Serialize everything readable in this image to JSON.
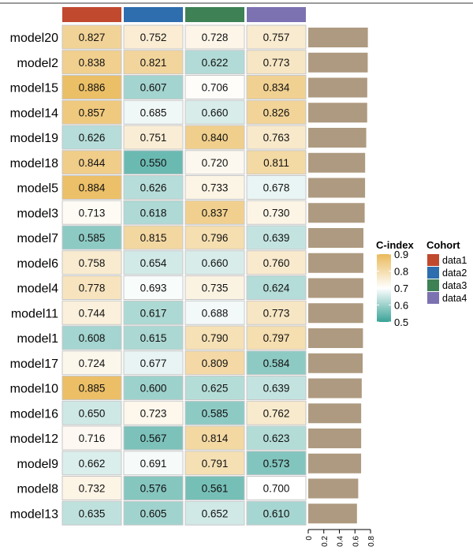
{
  "chart_data": {
    "type": "heatmap",
    "columns": [
      "data1",
      "data2",
      "data3",
      "data4"
    ],
    "rows": [
      "model20",
      "model2",
      "model15",
      "model14",
      "model19",
      "model18",
      "model5",
      "model3",
      "model7",
      "model6",
      "model4",
      "model11",
      "model1",
      "model17",
      "model10",
      "model16",
      "model12",
      "model9",
      "model8",
      "model13"
    ],
    "values": [
      [
        0.827,
        0.752,
        0.728,
        0.757
      ],
      [
        0.838,
        0.821,
        0.622,
        0.773
      ],
      [
        0.886,
        0.607,
        0.706,
        0.834
      ],
      [
        0.857,
        0.685,
        0.66,
        0.826
      ],
      [
        0.626,
        0.751,
        0.84,
        0.763
      ],
      [
        0.844,
        0.55,
        0.72,
        0.811
      ],
      [
        0.884,
        0.626,
        0.733,
        0.678
      ],
      [
        0.713,
        0.618,
        0.837,
        0.73
      ],
      [
        0.585,
        0.815,
        0.796,
        0.639
      ],
      [
        0.758,
        0.654,
        0.66,
        0.76
      ],
      [
        0.778,
        0.693,
        0.735,
        0.624
      ],
      [
        0.744,
        0.617,
        0.688,
        0.773
      ],
      [
        0.608,
        0.615,
        0.79,
        0.797
      ],
      [
        0.724,
        0.677,
        0.809,
        0.584
      ],
      [
        0.885,
        0.6,
        0.625,
        0.639
      ],
      [
        0.65,
        0.723,
        0.585,
        0.762
      ],
      [
        0.716,
        0.567,
        0.814,
        0.623
      ],
      [
        0.662,
        0.691,
        0.791,
        0.573
      ],
      [
        0.732,
        0.576,
        0.561,
        0.7
      ],
      [
        0.635,
        0.605,
        0.652,
        0.61
      ]
    ],
    "value_labels": [
      [
        "0.827",
        "0.752",
        "0.728",
        "0.757"
      ],
      [
        "0.838",
        "0.821",
        "0.622",
        "0.773"
      ],
      [
        "0.886",
        "0.607",
        "0.706",
        "0.834"
      ],
      [
        "0.857",
        "0.685",
        "0.660",
        "0.826"
      ],
      [
        "0.626",
        "0.751",
        "0.840",
        "0.763"
      ],
      [
        "0.844",
        "0.550",
        "0.720",
        "0.811"
      ],
      [
        "0.884",
        "0.626",
        "0.733",
        "0.678"
      ],
      [
        "0.713",
        "0.618",
        "0.837",
        "0.730"
      ],
      [
        "0.585",
        "0.815",
        "0.796",
        "0.639"
      ],
      [
        "0.758",
        "0.654",
        "0.660",
        "0.760"
      ],
      [
        "0.778",
        "0.693",
        "0.735",
        "0.624"
      ],
      [
        "0.744",
        "0.617",
        "0.688",
        "0.773"
      ],
      [
        "0.608",
        "0.615",
        "0.790",
        "0.797"
      ],
      [
        "0.724",
        "0.677",
        "0.809",
        "0.584"
      ],
      [
        "0.885",
        "0.600",
        "0.625",
        "0.639"
      ],
      [
        "0.650",
        "0.723",
        "0.585",
        "0.762"
      ],
      [
        "0.716",
        "0.567",
        "0.814",
        "0.623"
      ],
      [
        "0.662",
        "0.691",
        "0.791",
        "0.573"
      ],
      [
        "0.732",
        "0.576",
        "0.561",
        "0.700"
      ],
      [
        "0.635",
        "0.605",
        "0.652",
        "0.610"
      ]
    ],
    "cohort_colors": {
      "data1": "#C1492E",
      "data2": "#2E6DAE",
      "data3": "#3D8155",
      "data4": "#7C72B2"
    },
    "color_scale": {
      "name": "C-index",
      "min": 0.5,
      "mid": 0.7,
      "max": 0.9,
      "low_color": "#3AA398",
      "mid_color": "#FFFFFF",
      "high_color": "#EABA5B",
      "ticks": [
        0.9,
        0.8,
        0.7,
        0.6,
        0.5
      ],
      "tick_labels": [
        "0.9",
        "0.8",
        "0.7",
        "0.6",
        "0.5"
      ]
    },
    "legend": {
      "colorbar_title": "C-index",
      "cohort_title": "Cohort",
      "cohort_items": [
        "data1",
        "data2",
        "data3",
        "data4"
      ],
      "placement": "right"
    },
    "bar": {
      "type": "bar",
      "orientation": "horizontal",
      "measure": "mean C-index",
      "values": [
        0.766,
        0.764,
        0.758,
        0.757,
        0.745,
        0.731,
        0.73,
        0.725,
        0.709,
        0.708,
        0.708,
        0.706,
        0.703,
        0.699,
        0.687,
        0.68,
        0.68,
        0.679,
        0.642,
        0.626
      ],
      "xlim": [
        0,
        0.8
      ],
      "ticks": [
        0,
        0.2,
        0.4,
        0.6,
        0.8
      ],
      "tick_labels": [
        "0",
        "0.2",
        "0.4",
        "0.6",
        "0.8"
      ],
      "color": "#AE9A80"
    }
  }
}
